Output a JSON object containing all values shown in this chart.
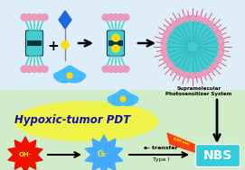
{
  "bg_top_color": "#ddf0f8",
  "bg_bot_color": "#d8f0d0",
  "pillar_color": "#44cccc",
  "pillar_dark": "#003344",
  "pink_color": "#ee99bb",
  "blue_guest_color": "#44bbff",
  "yellow_bond": "#ffdd00",
  "diamond_color": "#2266dd",
  "nbs_color": "#33ccdd",
  "nbs_text": "NBS",
  "laser_color": "#ff3300",
  "oh_color": "#ff2200",
  "o2_color": "#44aaff",
  "yellow_ellipse_color": "#f5f530",
  "arrow_color": "#111111",
  "title_color": "#1111aa",
  "supramolecular_text": "Supramolecular\nPhotosensitizer System",
  "etransfer_text": "e- transfer",
  "type1_text": "Type I"
}
